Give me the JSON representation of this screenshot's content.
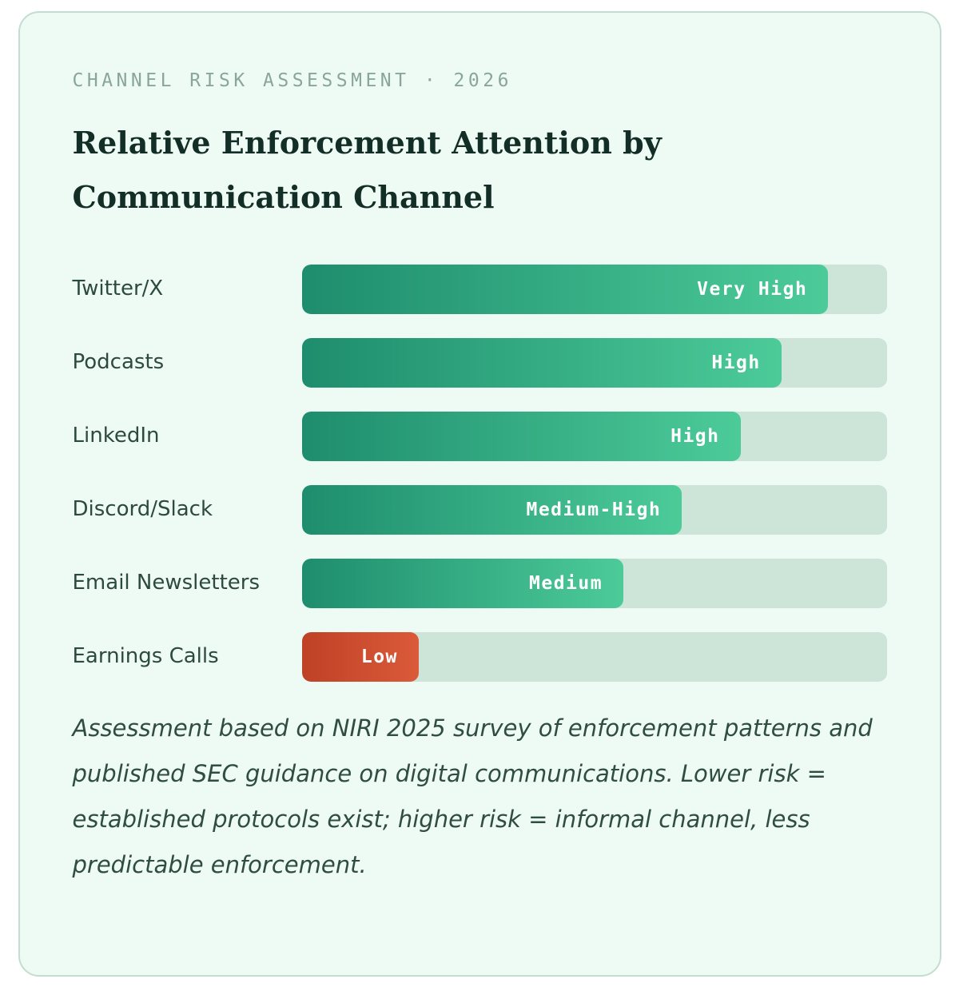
{
  "page": {
    "background": "#ffffff",
    "card_background": "#eefaf4",
    "card_border": "#c3ddd0"
  },
  "header": {
    "eyebrow": "CHANNEL RISK ASSESSMENT · 2026",
    "title": "Relative Enforcement Attention by Communication Channel"
  },
  "chart_data": {
    "type": "bar",
    "orientation": "horizontal",
    "title": "Relative Enforcement Attention by Communication Channel",
    "xlabel": "",
    "ylabel": "",
    "grid": false,
    "legend": false,
    "track_color": "#cde4d9",
    "value_label_color": "#ffffff",
    "categories": [
      "Twitter/X",
      "Podcasts",
      "LinkedIn",
      "Discord/Slack",
      "Email Newsletters",
      "Earnings Calls"
    ],
    "value_labels": [
      "Very High",
      "High",
      "High",
      "Medium-High",
      "Medium",
      "Low"
    ],
    "values_percent_of_track": [
      90,
      82,
      75,
      65,
      55,
      20
    ],
    "rows": [
      {
        "channel": "Twitter/X",
        "level": "Very High",
        "percent": 90,
        "gradient": [
          "#1e8d6d",
          "#4ccb99"
        ]
      },
      {
        "channel": "Podcasts",
        "level": "High",
        "percent": 82,
        "gradient": [
          "#1e8d6d",
          "#4ccb99"
        ]
      },
      {
        "channel": "LinkedIn",
        "level": "High",
        "percent": 75,
        "gradient": [
          "#1e8d6d",
          "#4ccb99"
        ]
      },
      {
        "channel": "Discord/Slack",
        "level": "Medium-High",
        "percent": 65,
        "gradient": [
          "#1e8d6d",
          "#4ccb99"
        ]
      },
      {
        "channel": "Email Newsletters",
        "level": "Medium",
        "percent": 55,
        "gradient": [
          "#1e8d6d",
          "#4ccb99"
        ]
      },
      {
        "channel": "Earnings Calls",
        "level": "Low",
        "percent": 20,
        "gradient": [
          "#bf4126",
          "#da5a39"
        ]
      }
    ]
  },
  "footer": {
    "note": "Assessment based on NIRI 2025 survey of enforcement patterns and published SEC guidance on digital communications. Lower risk = established protocols exist; higher risk = informal channel, less predictable enforcement."
  }
}
